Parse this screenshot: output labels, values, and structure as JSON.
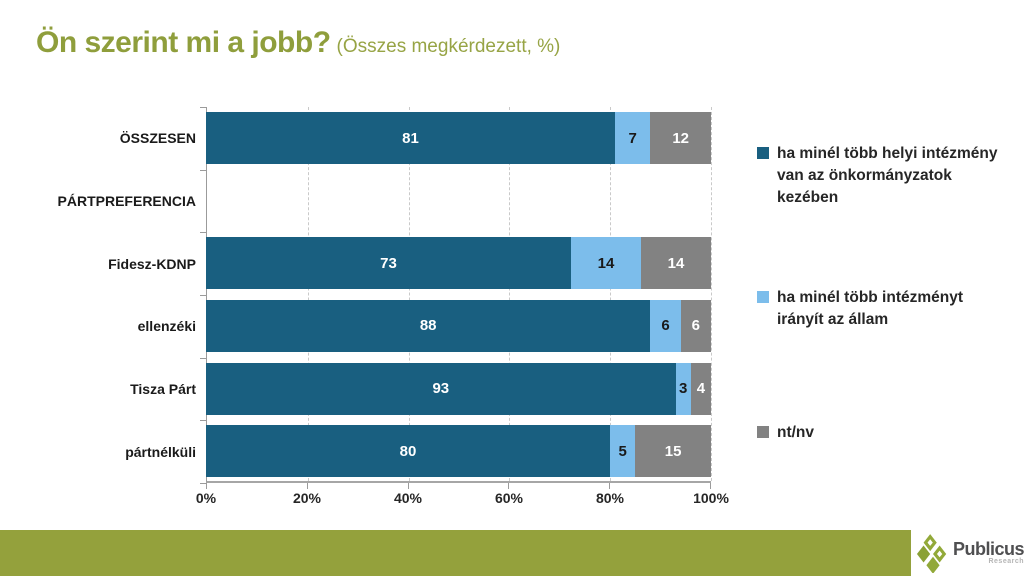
{
  "title": {
    "main": "Ön szerint mi a jobb?",
    "subtitle": "(Összes megkérdezett, %)"
  },
  "colors": {
    "series": [
      "#195F80",
      "#7CBDEB",
      "#828282"
    ],
    "title_green": "#8F9E3C",
    "footer_green": "#94A13C",
    "logo_green": "#92A939",
    "grid": "#C9C9C9",
    "axis": "#9B9B9B"
  },
  "chart_data": {
    "type": "bar",
    "orientation": "horizontal",
    "stacked": true,
    "title": "Ön szerint mi a jobb? (Összes megkérdezett, %)",
    "xlabel": "",
    "ylabel": "",
    "xlim": [
      0,
      100
    ],
    "grid": "dashed-vertical",
    "legend_position": "right",
    "x_ticks": [
      "0%",
      "20%",
      "40%",
      "60%",
      "80%",
      "100%"
    ],
    "x_tick_values": [
      0,
      20,
      40,
      60,
      80,
      100
    ],
    "categories": [
      "ÖSSZESEN",
      "PÁRTPREFERENCIA",
      "Fidesz-KDNP",
      "ellenzéki",
      "Tisza Párt",
      "pártnélküli"
    ],
    "series": [
      {
        "name": "ha minél több helyi intézmény van az önkormányzatok kezében",
        "color": "#195F80",
        "values": [
          81,
          null,
          73,
          88,
          93,
          80
        ]
      },
      {
        "name": "ha minél több intézményt irányít az állam",
        "color": "#7CBDEB",
        "values": [
          7,
          null,
          14,
          6,
          3,
          5
        ]
      },
      {
        "name": "nt/nv",
        "color": "#828282",
        "values": [
          12,
          null,
          14,
          6,
          4,
          15
        ]
      }
    ],
    "rows": [
      {
        "label": "ÖSSZESEN",
        "values": [
          81,
          7,
          12
        ]
      },
      {
        "label": "PÁRTPREFERENCIA",
        "values": null
      },
      {
        "label": "Fidesz-KDNP",
        "values": [
          73,
          14,
          14
        ]
      },
      {
        "label": "ellenzéki",
        "values": [
          88,
          6,
          6
        ]
      },
      {
        "label": "Tisza Párt",
        "values": [
          93,
          3,
          4
        ]
      },
      {
        "label": "pártnélküli",
        "values": [
          80,
          5,
          15
        ]
      }
    ],
    "legend": [
      {
        "label": "ha minél több helyi intézmény van az önkormányzatok kezében",
        "color": "#195F80"
      },
      {
        "label": "ha minél több intézményt irányít az állam",
        "color": "#7CBDEB"
      },
      {
        "label": "nt/nv",
        "color": "#828282"
      }
    ]
  },
  "footer": {
    "brand": "Publicus",
    "brand_sub": "Research"
  }
}
